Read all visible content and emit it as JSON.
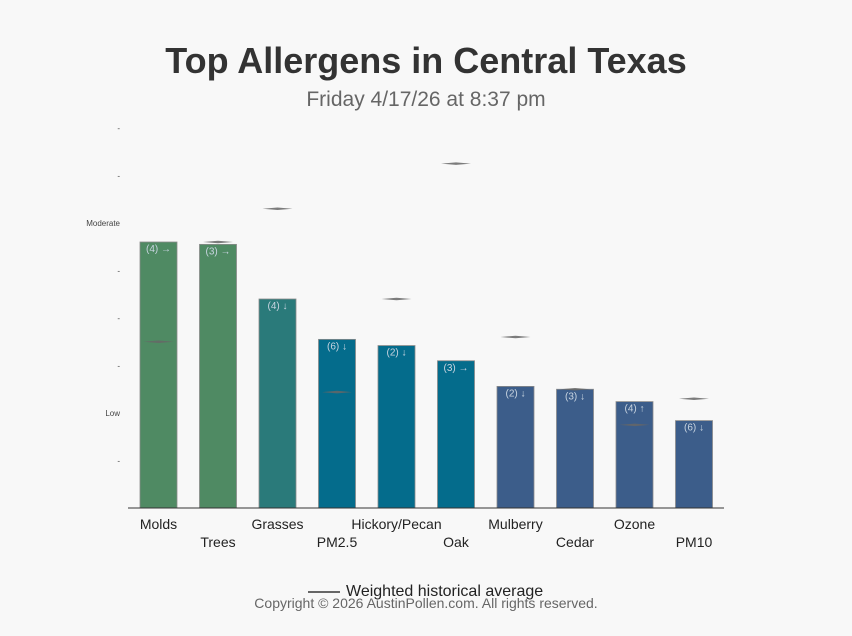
{
  "title": "Top Allergens in Central Texas",
  "subtitle": "Friday 4/17/26 at 8:37 pm",
  "copyright": "Copyright © 2026 AustinPollen.com.  All rights reserved.",
  "legend": {
    "label": "Weighted historical average",
    "color": "#666666"
  },
  "colors": {
    "molds": "#4f8a63",
    "grasses": "#2a7a7a",
    "pm25": "#046c8c",
    "mulberry": "#3c5d8a"
  },
  "chart_data": {
    "type": "bar",
    "categories": [
      "Molds",
      "Trees",
      "Grasses",
      "PM2.5",
      "Hickory/Pecan",
      "Oak",
      "Mulberry",
      "Cedar",
      "Ozone",
      "PM10"
    ],
    "values": [
      5.6,
      5.55,
      4.4,
      3.55,
      3.42,
      3.1,
      2.56,
      2.5,
      2.24,
      1.84
    ],
    "bar_labels": [
      "(4) →",
      "(3) →",
      "(4) ↓",
      "(6) ↓",
      "(2) ↓",
      "(3) →",
      "(2) ↓",
      "(3) ↓",
      "(4) ↑",
      "(6) ↓"
    ],
    "bar_colors": [
      "#4f8a63",
      "#4f8a63",
      "#2a7a7a",
      "#046c8c",
      "#046c8c",
      "#046c8c",
      "#3c5d8a",
      "#3c5d8a",
      "#3c5d8a",
      "#3c5d8a"
    ],
    "historical_average": [
      3.5,
      5.6,
      6.3,
      2.44,
      4.4,
      7.25,
      3.6,
      2.5,
      1.75,
      2.3
    ],
    "yticks": [
      {
        "value": 1,
        "label": "-"
      },
      {
        "value": 2,
        "label": "Low"
      },
      {
        "value": 3,
        "label": "-"
      },
      {
        "value": 4,
        "label": "-"
      },
      {
        "value": 5,
        "label": "-"
      },
      {
        "value": 6,
        "label": "Moderate"
      },
      {
        "value": 7,
        "label": "-"
      },
      {
        "value": 8,
        "label": "-"
      }
    ],
    "ylim": [
      0,
      8
    ],
    "xlabel": "",
    "ylabel": "",
    "grid": false,
    "legend_position": "bottom"
  }
}
